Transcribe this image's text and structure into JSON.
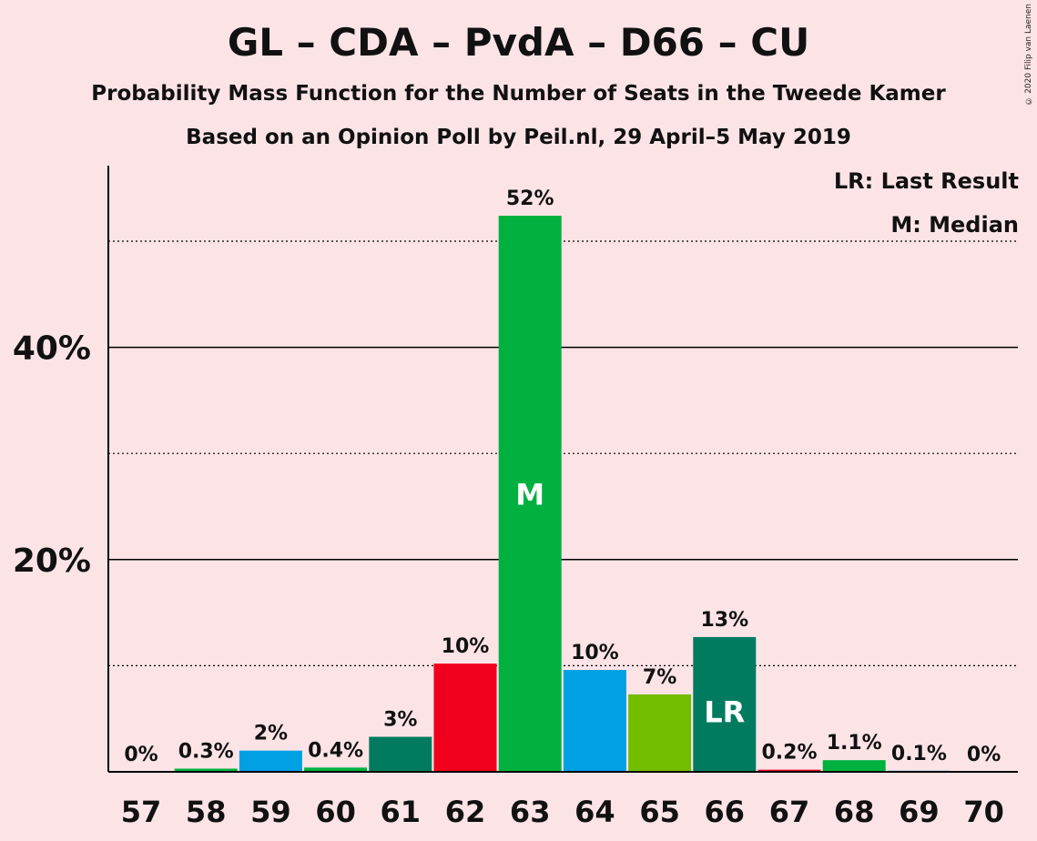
{
  "title": "GL – CDA – PvdA – D66 – CU",
  "subtitle": "Probability Mass Function for the Number of Seats in the Tweede Kamer",
  "subtitle2": "Based on an Opinion Poll by Peil.nl, 29 April–5 May 2019",
  "copyright": "© 2020 Filip van Laenen",
  "legend": {
    "lr": "LR: Last Result",
    "m": "M: Median"
  },
  "chart_data": {
    "type": "bar",
    "categories": [
      "57",
      "58",
      "59",
      "60",
      "61",
      "62",
      "63",
      "64",
      "65",
      "66",
      "67",
      "68",
      "69",
      "70"
    ],
    "values": [
      0,
      0.3,
      2,
      0.4,
      3.3,
      10.2,
      52.4,
      9.6,
      7.3,
      12.7,
      0.2,
      1.1,
      0.1,
      0
    ],
    "labels": [
      "0%",
      "0.3%",
      "2%",
      "0.4%",
      "3%",
      "10%",
      "52%",
      "10%",
      "7%",
      "13%",
      "0.2%",
      "1.1%",
      "0.1%",
      "0%"
    ],
    "colors": [
      "#00b140",
      "#00b140",
      "#00a0e2",
      "#00b140",
      "#007b5f",
      "#f0001c",
      "#00b140",
      "#00a0e2",
      "#73bd00",
      "#007b5f",
      "#f0001c",
      "#00b140",
      "#00a0e2",
      "#00b140"
    ],
    "markers": {
      "6": "M",
      "9": "LR"
    },
    "ylim": [
      0,
      57
    ],
    "yticks": [
      {
        "value": 20,
        "label": "20%"
      },
      {
        "value": 40,
        "label": "40%"
      }
    ],
    "dotted_gridlines": [
      10,
      30,
      50
    ],
    "solid_gridlines": [
      20,
      40
    ],
    "xlabel": "",
    "ylabel": ""
  }
}
